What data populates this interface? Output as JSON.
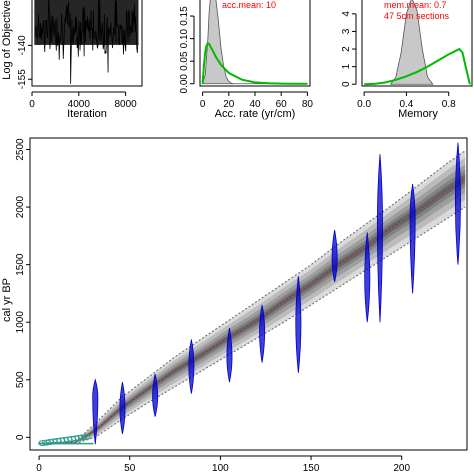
{
  "chart_data": [
    {
      "id": "iter",
      "type": "line",
      "xlabel": "Iteration",
      "ylabel": "Log of Objective",
      "xticks": [
        "0",
        "4000",
        "8000"
      ],
      "xtick_values": [
        0,
        4000,
        8000
      ],
      "yticks": [
        "-140",
        "-155"
      ],
      "ytick_values": [
        -140,
        -155
      ],
      "xlim": [
        0,
        9400
      ],
      "ylim": [
        -158,
        -119
      ],
      "series": [
        {
          "values_note": "",
          "color": "#000000"
        }
      ],
      "trace_mean": -132,
      "trace_sd": 6,
      "trace_n": 180,
      "trace_outliers": [
        {
          "x": 3300,
          "y": -157
        },
        {
          "x": 6500,
          "y": -152
        }
      ]
    },
    {
      "id": "acc",
      "type": "area",
      "xlabel": "Acc. rate (yr/cm)",
      "xticks": [
        "0",
        "20",
        "40",
        "60",
        "80"
      ],
      "xtick_values": [
        0,
        20,
        40,
        60,
        80
      ],
      "yticks": [
        "0.00",
        "0.05",
        "0.10",
        "0.15"
      ],
      "ytick_values": [
        0.0,
        0.05,
        0.1,
        0.15
      ],
      "xlim": [
        -2,
        82
      ],
      "ylim": [
        -0.005,
        0.19
      ],
      "annotation": "acc.mean: 10",
      "annotation_color": "#ff0000",
      "prior_color": "#00bb00",
      "posterior_fill": "#c8c8c8",
      "posterior": {
        "x": [
          0,
          2,
          4,
          5,
          6,
          8,
          10,
          12,
          14,
          16,
          18,
          20,
          22,
          24,
          26,
          27,
          40,
          80
        ],
        "y": [
          0,
          0.02,
          0.1,
          0.16,
          0.2,
          0.22,
          0.2,
          0.14,
          0.08,
          0.04,
          0.015,
          0.005,
          0.001,
          0,
          0,
          0,
          0,
          0
        ]
      },
      "prior": {
        "x": [
          0,
          1,
          2,
          3,
          4,
          5,
          6,
          8,
          10,
          14,
          20,
          30,
          40,
          50,
          60,
          70,
          80
        ],
        "y": [
          0,
          0.04,
          0.07,
          0.085,
          0.09,
          0.088,
          0.082,
          0.072,
          0.06,
          0.042,
          0.024,
          0.009,
          0.003,
          0.001,
          0.0003,
          0.0001,
          0
        ]
      }
    },
    {
      "id": "mem",
      "type": "area",
      "xlabel": "Memory",
      "xticks": [
        "0.0",
        "0.4",
        "0.8"
      ],
      "xtick_values": [
        0.0,
        0.4,
        0.8
      ],
      "yticks": [
        "0",
        "1",
        "2",
        "3",
        "4"
      ],
      "ytick_values": [
        0,
        1,
        2,
        3,
        4
      ],
      "xlim": [
        -0.02,
        1.02
      ],
      "ylim": [
        -0.1,
        4.9
      ],
      "annotation_lines": [
        "mem.mean: 0.7",
        "47 5cm sections"
      ],
      "annotation_color": "#ff0000",
      "prior_color": "#00bb00",
      "posterior_fill": "#c8c8c8",
      "posterior": {
        "x": [
          0.25,
          0.3,
          0.35,
          0.4,
          0.45,
          0.5,
          0.55,
          0.6,
          0.65
        ],
        "y": [
          0,
          0.4,
          1.8,
          4.0,
          5.2,
          4.2,
          2.0,
          0.4,
          0
        ]
      },
      "prior": {
        "x": [
          0,
          0.1,
          0.2,
          0.3,
          0.4,
          0.5,
          0.6,
          0.7,
          0.8,
          0.85,
          0.9,
          0.93,
          0.96,
          1.0
        ],
        "y": [
          0,
          0.02,
          0.1,
          0.25,
          0.45,
          0.7,
          1.0,
          1.35,
          1.7,
          1.85,
          2.0,
          1.8,
          1.0,
          0
        ]
      }
    },
    {
      "id": "agedepth",
      "type": "area",
      "ylabel": "cal yr BP",
      "xticks": [
        "0",
        "50",
        "100",
        "150",
        "200"
      ],
      "xtick_values": [
        0,
        50,
        100,
        150,
        200
      ],
      "yticks": [
        "0",
        "500",
        "1000",
        "1500",
        "2000",
        "2500"
      ],
      "ytick_values": [
        0,
        500,
        1000,
        1500,
        2000,
        2500
      ],
      "xlim": [
        -5,
        236
      ],
      "ylim": [
        -110,
        2600
      ],
      "model": {
        "depth": [
          0,
          20,
          31,
          45,
          60,
          75,
          90,
          105,
          120,
          135,
          150,
          165,
          180,
          195,
          210,
          225,
          235
        ],
        "mean": [
          -55,
          -45,
          60,
          250,
          420,
          580,
          720,
          870,
          1010,
          1180,
          1330,
          1500,
          1650,
          1830,
          1980,
          2150,
          2250
        ],
        "lo95": [
          -60,
          -55,
          0,
          150,
          300,
          440,
          580,
          720,
          860,
          1000,
          1150,
          1300,
          1450,
          1600,
          1750,
          1900,
          2000
        ],
        "hi95": [
          -50,
          -35,
          120,
          340,
          520,
          700,
          860,
          1020,
          1180,
          1340,
          1500,
          1680,
          1850,
          2020,
          2200,
          2380,
          2490
        ]
      },
      "cal_ages": [
        {
          "depth": 31,
          "age": 350,
          "range": [
            -60,
            500
          ],
          "color": "#0000cc"
        },
        {
          "depth": 46,
          "age": 250,
          "range": [
            30,
            480
          ],
          "color": "#0000cc"
        },
        {
          "depth": 64,
          "age": 360,
          "range": [
            180,
            550
          ],
          "color": "#0000cc"
        },
        {
          "depth": 84,
          "age": 620,
          "range": [
            380,
            850
          ],
          "color": "#0000cc"
        },
        {
          "depth": 105,
          "age": 700,
          "range": [
            480,
            950
          ],
          "color": "#0000cc"
        },
        {
          "depth": 123,
          "age": 920,
          "range": [
            650,
            1150
          ],
          "color": "#0000cc"
        },
        {
          "depth": 143,
          "age": 1000,
          "range": [
            560,
            1400
          ],
          "color": "#0000cc"
        },
        {
          "depth": 163,
          "age": 1550,
          "range": [
            1350,
            1800
          ],
          "color": "#0000cc"
        },
        {
          "depth": 181,
          "age": 1380,
          "range": [
            1000,
            1780
          ],
          "color": "#0000cc"
        },
        {
          "depth": 188,
          "age": 1850,
          "range": [
            1000,
            2460
          ],
          "color": "#0000cc"
        },
        {
          "depth": 206,
          "age": 1900,
          "range": [
            1250,
            2200
          ],
          "color": "#0000cc"
        },
        {
          "depth": 231,
          "age": 2050,
          "range": [
            1500,
            2560
          ],
          "color": "#0000cc"
        }
      ],
      "surface_dates": {
        "depth_start": 0,
        "depth_end": 30,
        "color": "#2a9d8f"
      },
      "envelope_color": "#888888",
      "ci_line_color": "#666666",
      "mean_line_color": "#dd0000"
    }
  ]
}
